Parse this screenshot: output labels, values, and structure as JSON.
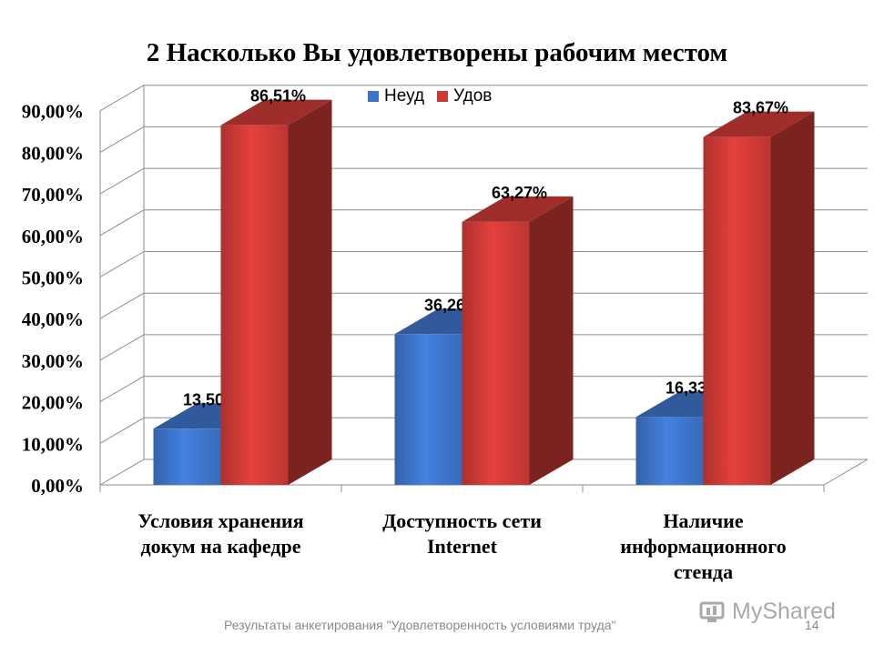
{
  "slide": {
    "footer_text": "Результаты анкетирования \"Удовлетворенность условиями труда\"",
    "page_number": "14",
    "watermark": "MyShared"
  },
  "chart_data": {
    "type": "bar",
    "title": "2 Насколько Вы удовлетворены рабочим местом",
    "categories": [
      [
        "Условия хранения",
        "докум на кафедре"
      ],
      [
        "Доступность сети",
        "Internet"
      ],
      [
        "Наличие",
        "информационного",
        "стенда"
      ]
    ],
    "series": [
      {
        "name": "Неуд",
        "color": "#3d73c8",
        "values": [
          13.5,
          36.26,
          16.33
        ],
        "labels": [
          "13,50%",
          "36,26%",
          "16,33%"
        ]
      },
      {
        "name": "Удов",
        "color": "#cc3a36",
        "values": [
          86.51,
          63.27,
          83.67
        ],
        "labels": [
          "86,51%",
          "63,27%",
          "83,67%"
        ]
      }
    ],
    "y_ticks": [
      "0,00%",
      "10,00%",
      "20,00%",
      "30,00%",
      "40,00%",
      "50,00%",
      "60,00%",
      "70,00%",
      "80,00%",
      "90,00%"
    ],
    "ylim": [
      0,
      90
    ],
    "grid": true,
    "legend_position": "top",
    "style": "3d"
  }
}
